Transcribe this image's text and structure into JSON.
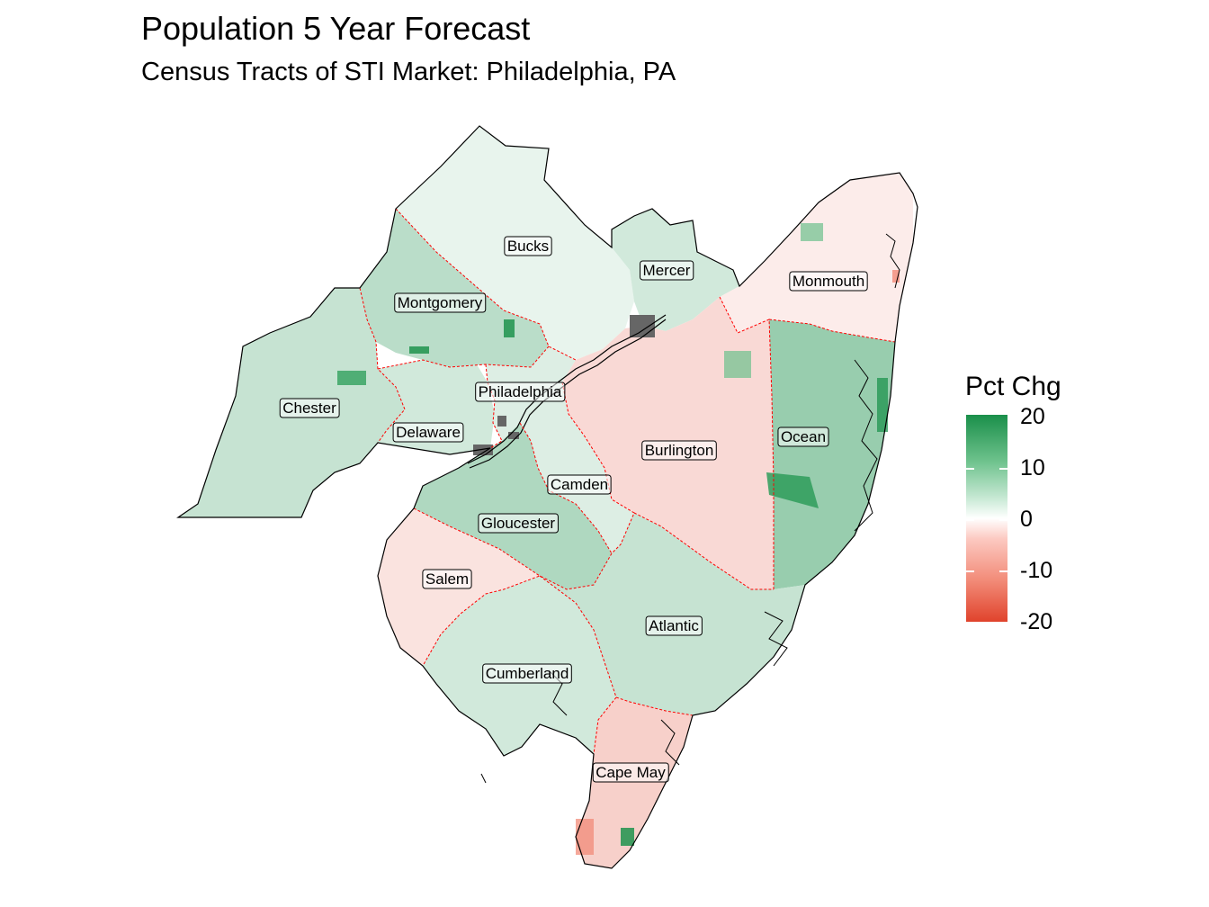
{
  "title": "Population 5 Year Forecast",
  "subtitle": "Census Tracts of STI Market: Philadelphia, PA",
  "legend": {
    "title": "Pct Chg",
    "ticks": [
      "20",
      "10",
      "0",
      "-10",
      "-20"
    ],
    "colors": {
      "high": "#1a8f4a",
      "mid": "#ffffff",
      "low": "#e0432c"
    }
  },
  "counties": [
    {
      "name": "Bucks",
      "change": 2
    },
    {
      "name": "Mercer",
      "change": 4
    },
    {
      "name": "Monmouth",
      "change": -2
    },
    {
      "name": "Montgomery",
      "change": 6
    },
    {
      "name": "Philadelphia",
      "change": 3
    },
    {
      "name": "Chester",
      "change": 5
    },
    {
      "name": "Delaware",
      "change": 4
    },
    {
      "name": "Burlington",
      "change": -4
    },
    {
      "name": "Ocean",
      "change": 9
    },
    {
      "name": "Camden",
      "change": 3
    },
    {
      "name": "Gloucester",
      "change": 7
    },
    {
      "name": "Salem",
      "change": -3
    },
    {
      "name": "Atlantic",
      "change": 5
    },
    {
      "name": "Cumberland",
      "change": 4
    },
    {
      "name": "Cape May",
      "change": -5
    }
  ]
}
